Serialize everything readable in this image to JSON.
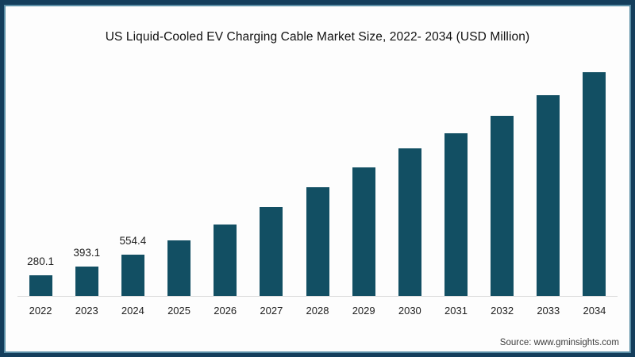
{
  "colors": {
    "page_bg": "#fdfdfd",
    "bar": "#124f63",
    "frame_border": "#143e5c",
    "frame_inner_line": "#3d7a96",
    "baseline": "#d9d9d9",
    "title_text": "#111111",
    "label_text": "#1f1f1f",
    "source_text": "#3c3c3c"
  },
  "chart_data": {
    "type": "bar",
    "title": "US Liquid-Cooled EV Charging Cable Market Size, 2022- 2034 (USD Million)",
    "xlabel": "",
    "ylabel": "",
    "categories": [
      "2022",
      "2023",
      "2024",
      "2025",
      "2026",
      "2027",
      "2028",
      "2029",
      "2030",
      "2031",
      "2032",
      "2033",
      "2034"
    ],
    "values": [
      280.1,
      393.1,
      554.4,
      750,
      960,
      1195,
      1460,
      1725,
      1975,
      2185,
      2415,
      2695,
      3000
    ],
    "data_labels": [
      "280.1",
      "393.1",
      "554.4",
      "",
      "",
      "",
      "",
      "",
      "",
      "",
      "",
      "",
      ""
    ],
    "ylim": [
      0,
      3000
    ],
    "grid": false,
    "legend": null
  },
  "source": {
    "text": "Source: www.gminsights.com"
  }
}
